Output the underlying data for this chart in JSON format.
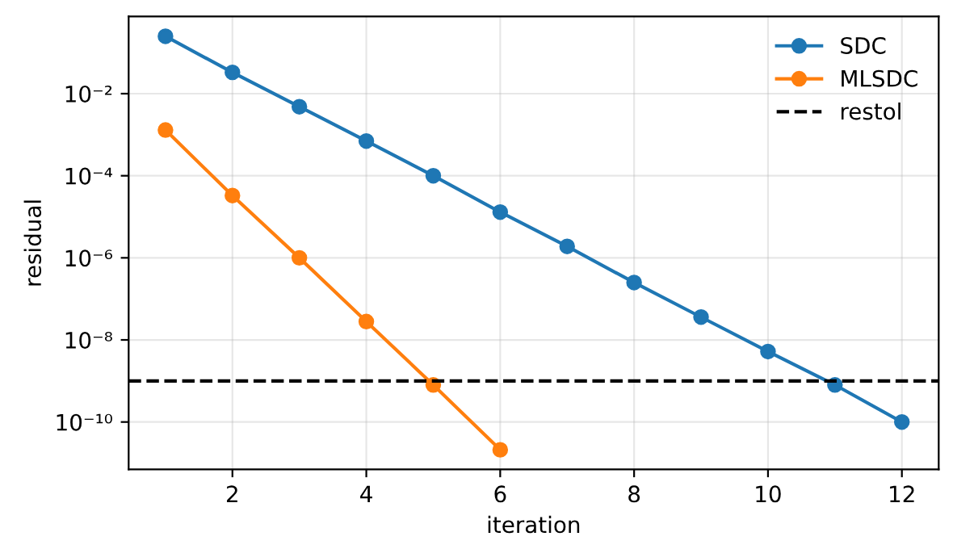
{
  "chart_data": {
    "type": "line",
    "xlabel": "iteration",
    "ylabel": "residual",
    "x": [
      1,
      2,
      3,
      4,
      5,
      6,
      7,
      8,
      9,
      10,
      11,
      12
    ],
    "series": [
      {
        "name": "SDC",
        "color": "#1f77b4",
        "values": [
          0.25,
          0.033,
          0.0048,
          0.0007,
          0.0001,
          1.3e-05,
          1.9e-06,
          2.5e-07,
          3.6e-08,
          5.2e-09,
          8e-10,
          1e-10
        ]
      },
      {
        "name": "MLSDC",
        "color": "#ff7f0e",
        "values": [
          0.0013,
          3.3e-05,
          1e-06,
          2.8e-08,
          8e-10,
          2.1e-11,
          null,
          null,
          null,
          null,
          null,
          null
        ]
      }
    ],
    "ref_lines": [
      {
        "axis": "y",
        "value": 1e-09,
        "label": "restol",
        "color": "#000000",
        "line_style": "dashed"
      }
    ],
    "log": "y",
    "marker": "circle",
    "grid": true,
    "legend": "top right",
    "xlim": [
      0.45,
      12.55
    ],
    "xticks": [
      2,
      4,
      6,
      8,
      10,
      12
    ],
    "ylim": [
      7e-12,
      0.76
    ],
    "yticks": [
      {
        "value": 1e-10,
        "label": "10⁻¹⁰"
      },
      {
        "value": 1e-08,
        "label": "10⁻⁸"
      },
      {
        "value": 1e-06,
        "label": "10⁻⁶"
      },
      {
        "value": 0.0001,
        "label": "10⁻⁴"
      },
      {
        "value": 0.01,
        "label": "10⁻²"
      }
    ]
  }
}
